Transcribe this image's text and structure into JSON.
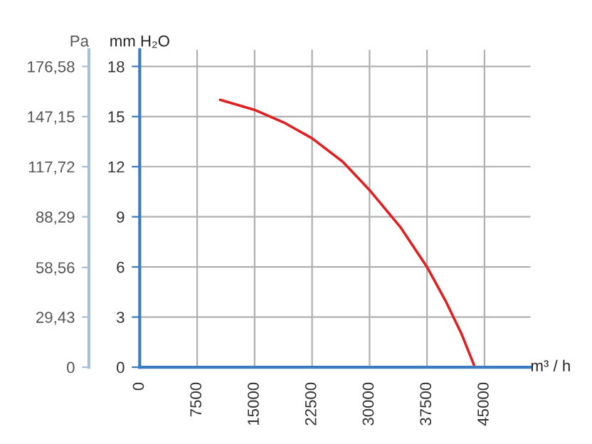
{
  "chart_data": {
    "type": "line",
    "xlabel": "m³ / h",
    "ylabel": "mm H₂O",
    "y2label": "Pa",
    "x": [
      10500,
      15000,
      19000,
      22500,
      26500,
      30000,
      34000,
      37500,
      40000,
      42000,
      43750
    ],
    "series": [
      {
        "color": "#e02020",
        "values": [
          16.0,
          15.4,
          14.6,
          13.7,
          12.3,
          10.6,
          8.4,
          6.0,
          3.9,
          2.0,
          0
        ]
      }
    ],
    "xlim": [
      0,
      51000
    ],
    "xticks": [
      0,
      7500,
      15000,
      22500,
      30000,
      37500,
      45000
    ],
    "ylim": [
      0,
      19
    ],
    "yticks": [
      0,
      3,
      6,
      9,
      12,
      15,
      18
    ],
    "y2lim": [
      0,
      186.39
    ],
    "y2ticks": [
      {
        "value": 0,
        "label": "0"
      },
      {
        "value": 29.43,
        "label": "29,43"
      },
      {
        "value": 58.56,
        "label": "58,56"
      },
      {
        "value": 88.29,
        "label": "88,29"
      },
      {
        "value": 117.72,
        "label": "117,72"
      },
      {
        "value": 147.15,
        "label": "147,15"
      },
      {
        "value": 176.58,
        "label": "176,58"
      }
    ],
    "grid": true,
    "marker": "none",
    "line_style": "solid"
  }
}
